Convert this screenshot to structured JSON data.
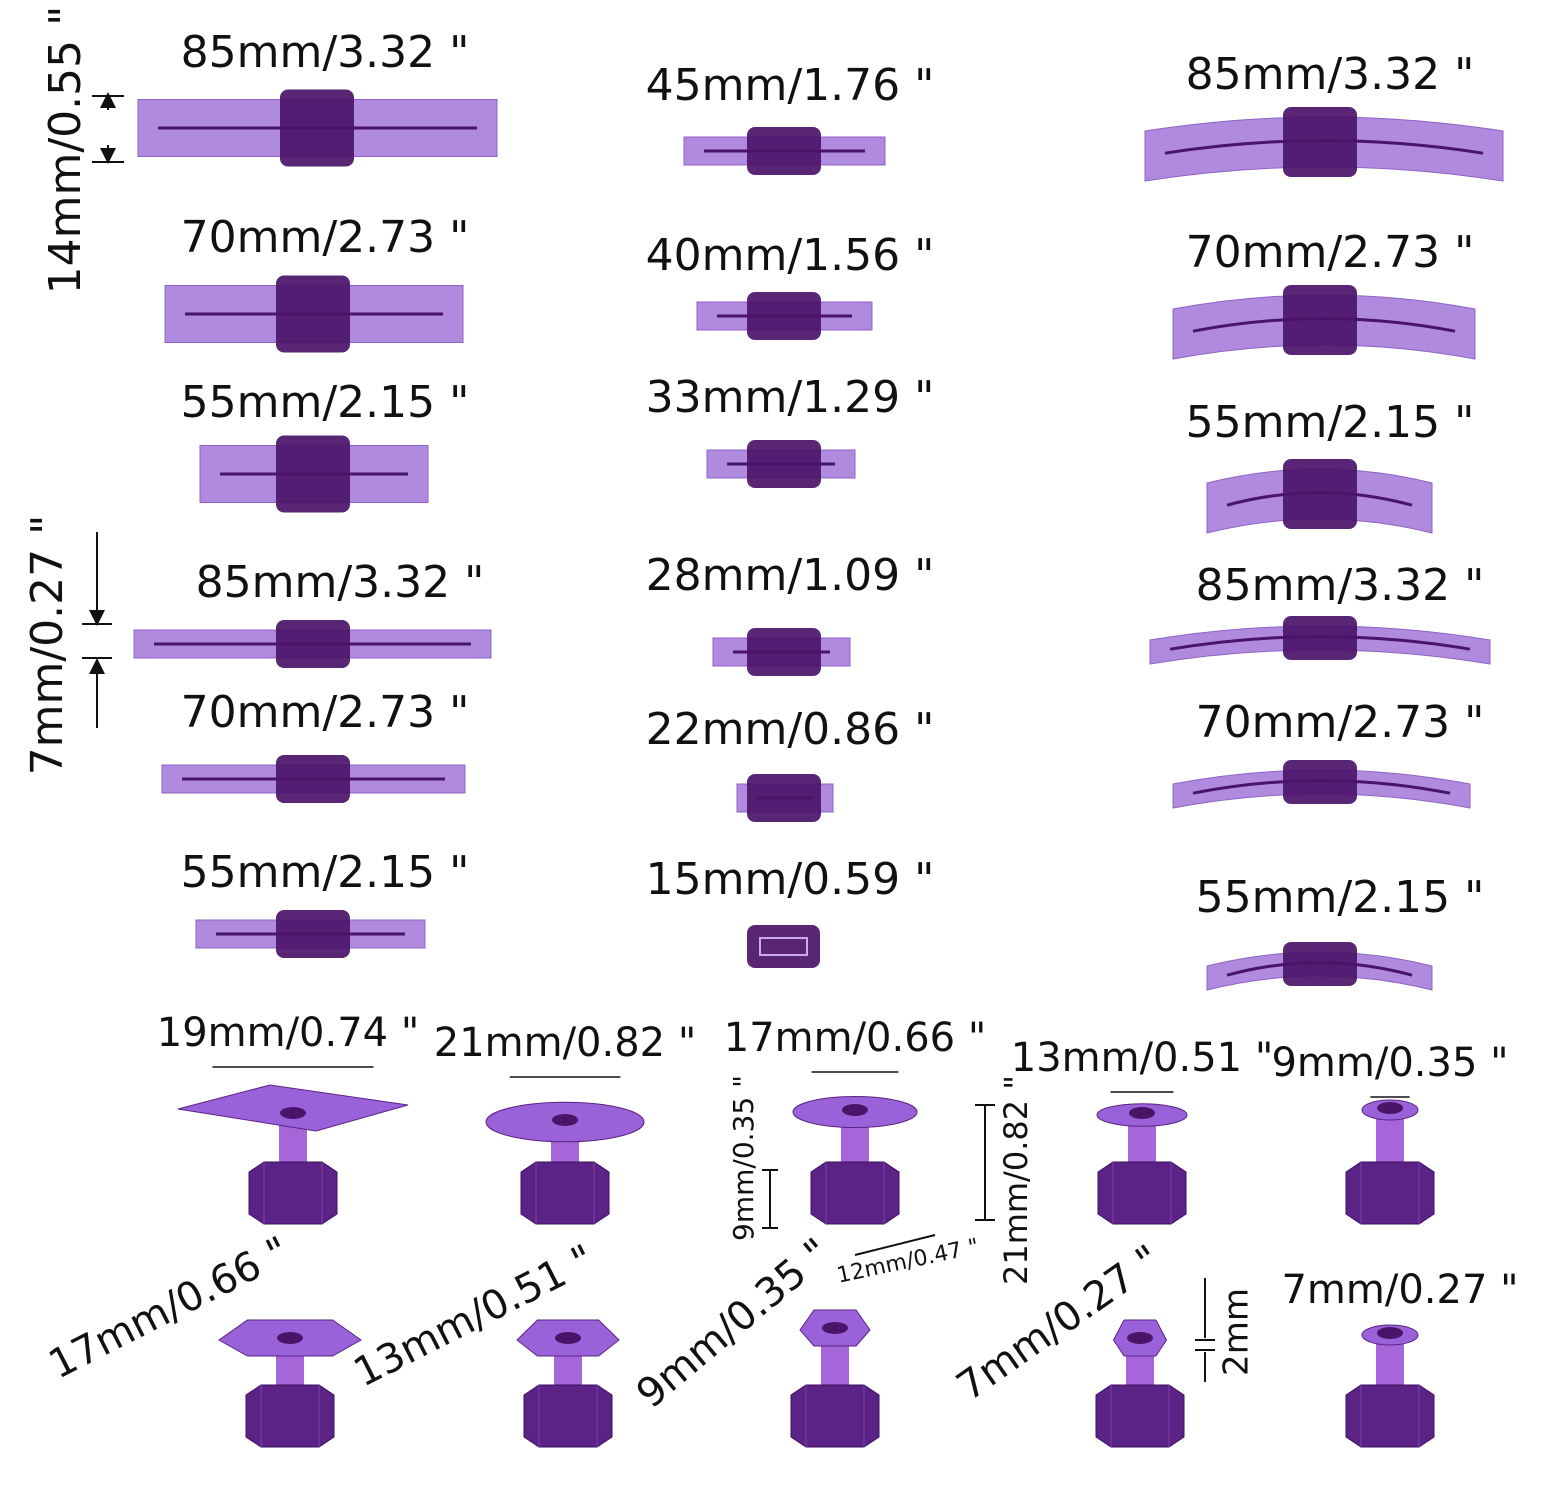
{
  "side_labels": [
    "14mm/0.55 \"",
    "7mm/0.27 \""
  ],
  "straight_tabs": [
    "85mm/3.32 \"",
    "70mm/2.73 \"",
    "55mm/2.15 \"",
    "85mm/3.32 \"",
    "70mm/2.73 \"",
    "55mm/2.15 \""
  ],
  "small_tabs": [
    "45mm/1.76 \"",
    "40mm/1.56 \"",
    "33mm/1.29 \"",
    "28mm/1.09 \"",
    "22mm/0.86 \"",
    "15mm/0.59 \""
  ],
  "curved_tabs": [
    "85mm/3.32 \"",
    "70mm/2.73 \"",
    "55mm/2.15 \"",
    "85mm/3.32 \"",
    "70mm/2.73 \"",
    "55mm/2.15 \""
  ],
  "glue_tabs_top": [
    "19mm/0.74 \"",
    "21mm/0.82 \"",
    "17mm/0.66 \"",
    "13mm/0.51 \"",
    "9mm/0.35 \""
  ],
  "glue_tabs_bottom": [
    "17mm/0.66 \"",
    "13mm/0.51 \"",
    "9mm/0.35 \"",
    "7mm/0.27 \"",
    "7mm/0.27 \""
  ],
  "extra_dims": [
    "9mm/0.35 \"",
    "21mm/0.82 \"",
    "12mm/0.47 \"",
    "2mm"
  ]
}
